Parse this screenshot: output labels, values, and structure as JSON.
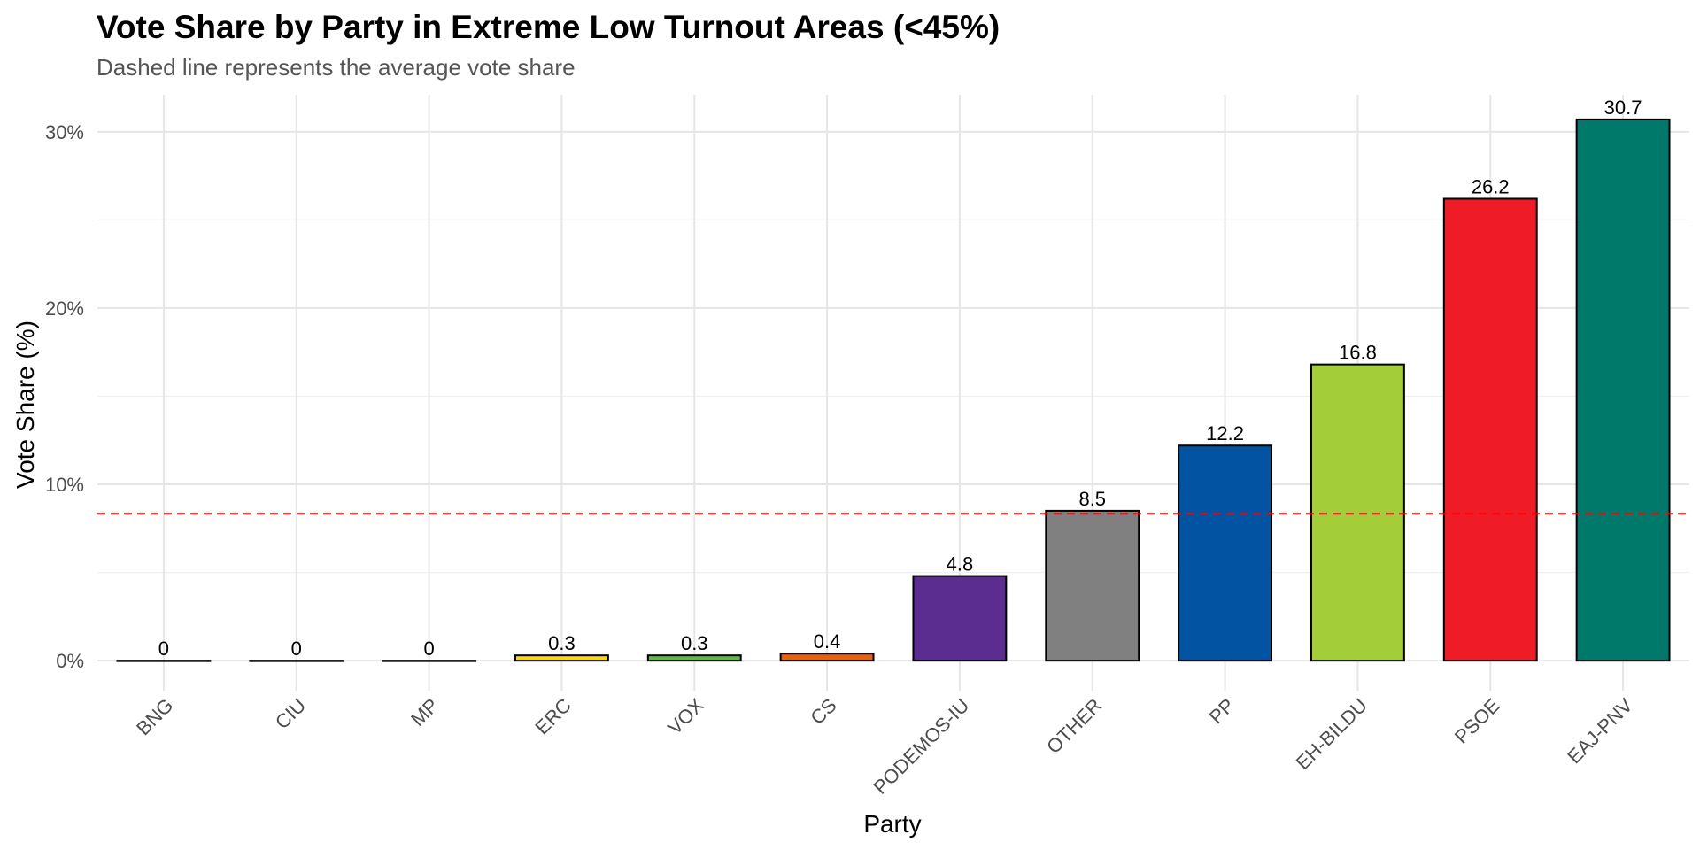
{
  "chart_data": {
    "type": "bar",
    "title": "Vote Share by Party in Extreme Low Turnout Areas (<45%)",
    "subtitle": "Dashed line represents the average vote share",
    "xlabel": "Party",
    "ylabel": "Vote Share (%)",
    "categories": [
      "BNG",
      "CIU",
      "MP",
      "ERC",
      "VOX",
      "CS",
      "PODEMOS-IU",
      "OTHER",
      "PP",
      "EH-BILDU",
      "PSOE",
      "EAJ-PNV"
    ],
    "values": [
      0,
      0,
      0,
      0.3,
      0.3,
      0.4,
      4.8,
      8.5,
      12.2,
      16.8,
      26.2,
      30.7
    ],
    "data_labels": [
      "0",
      "0",
      "0",
      "0.3",
      "0.3",
      "0.4",
      "4.8",
      "8.5",
      "12.2",
      "16.8",
      "26.2",
      "30.7"
    ],
    "colors": [
      "#ffffff",
      "#ffffff",
      "#ffffff",
      "#ffd700",
      "#5ac035",
      "#eb6109",
      "#5c2d91",
      "#808080",
      "#0254a3",
      "#a3cd39",
      "#ef1c27",
      "#00796b"
    ],
    "bar_outline_color": "#000000",
    "average_line": {
      "value": 8.33,
      "color": "#ff0000",
      "style": "dashed"
    },
    "y_ticks": [
      0,
      10,
      20,
      30
    ],
    "y_tick_labels": [
      "0%",
      "10%",
      "20%",
      "30%"
    ],
    "ylim": [
      -1.7,
      32.1
    ],
    "grid": true
  }
}
